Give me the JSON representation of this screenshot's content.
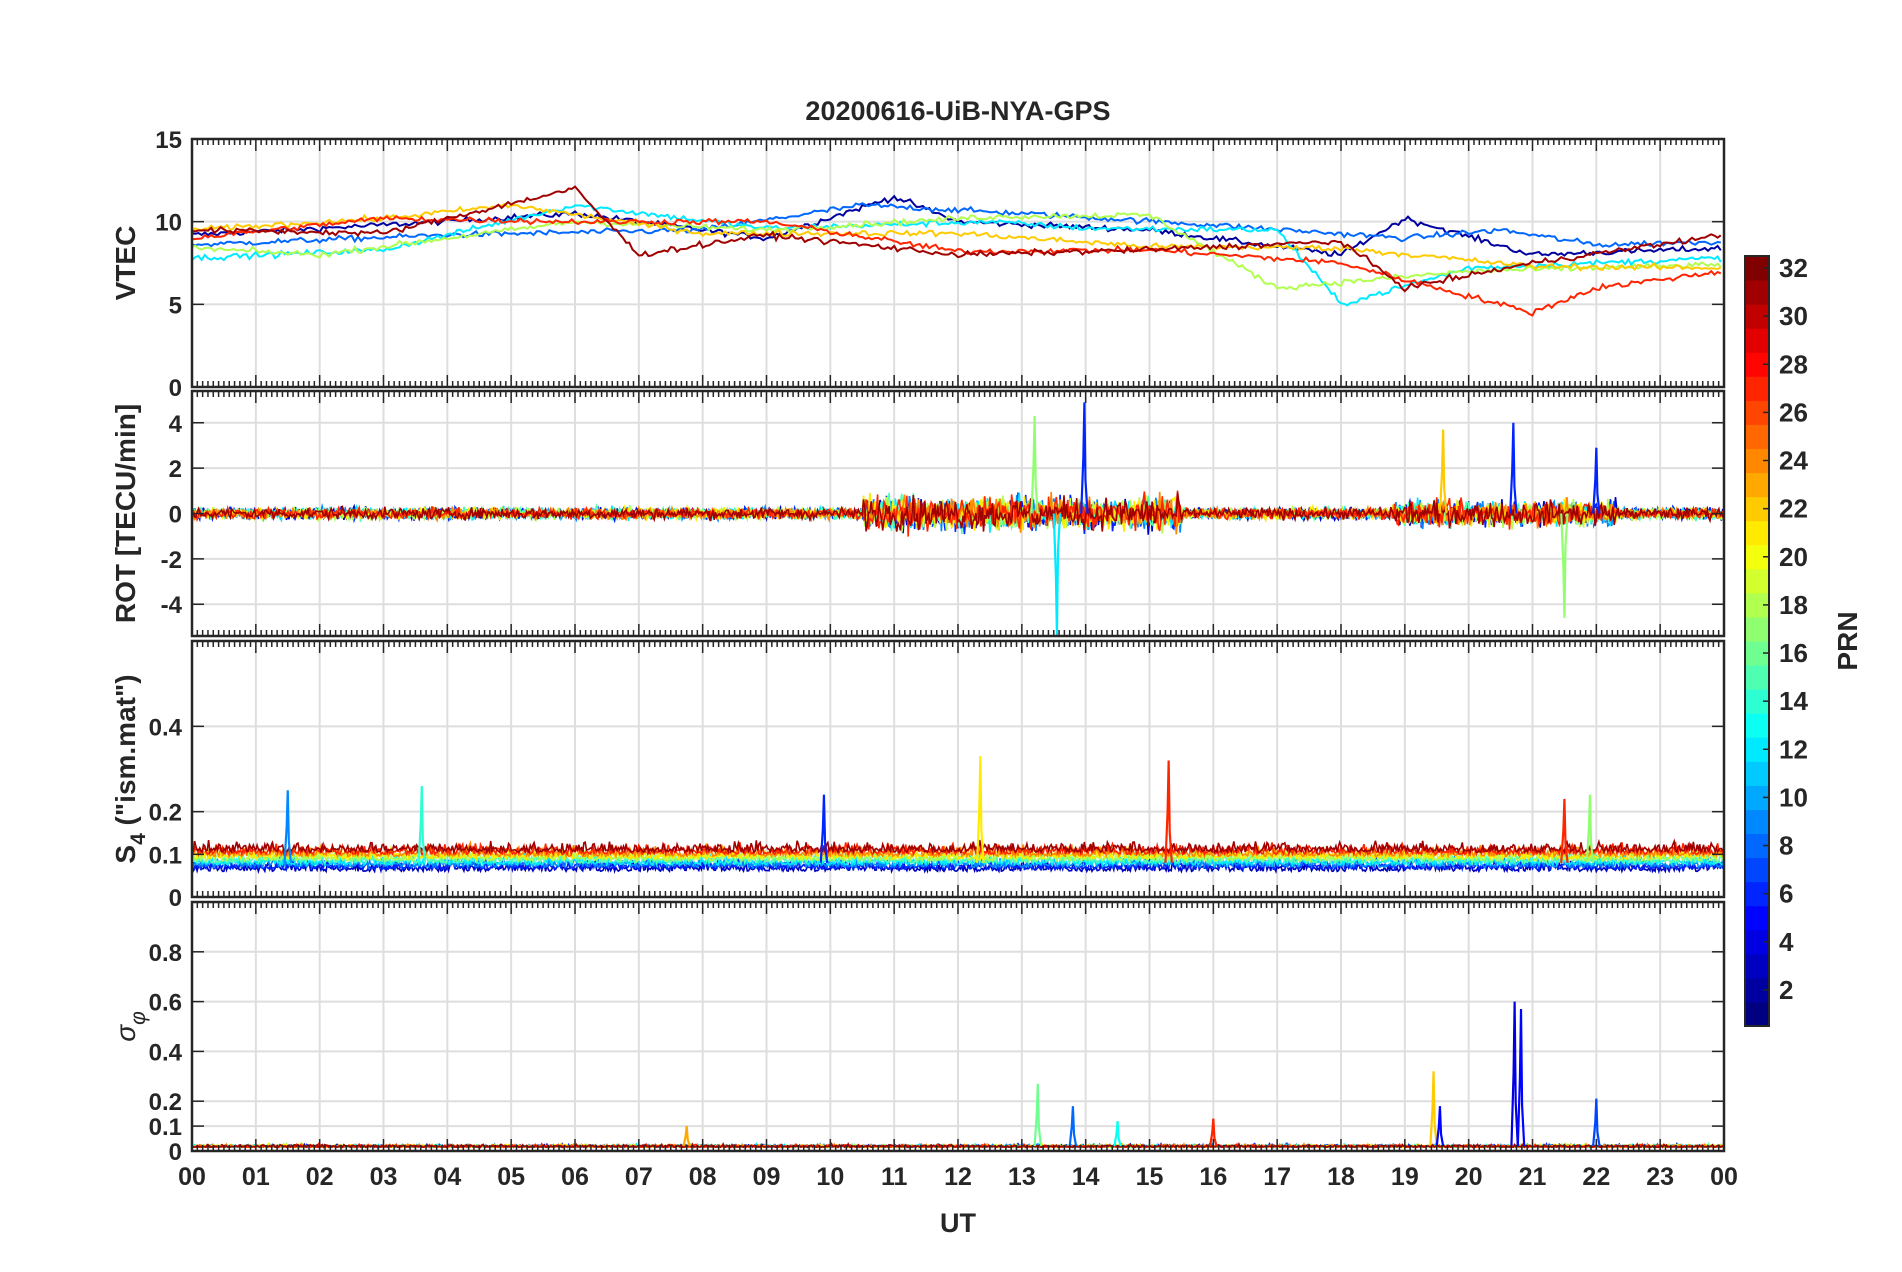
{
  "chart_data": {
    "type": "line",
    "title": "20200616-UiB-NYA-GPS",
    "xlabel": "UT",
    "x_ticks": [
      "00",
      "01",
      "02",
      "03",
      "04",
      "05",
      "06",
      "07",
      "08",
      "09",
      "10",
      "11",
      "12",
      "13",
      "14",
      "15",
      "16",
      "17",
      "18",
      "19",
      "20",
      "21",
      "22",
      "23",
      "00"
    ],
    "x_range_hours": [
      0,
      24
    ],
    "grid": true,
    "colorbar": {
      "label": "PRN",
      "range": [
        1,
        32
      ],
      "colormap": "jet",
      "ticks": [
        "2",
        "4",
        "6",
        "8",
        "10",
        "12",
        "14",
        "16",
        "18",
        "20",
        "22",
        "24",
        "26",
        "28",
        "30",
        "32"
      ],
      "placement": "right"
    },
    "panels": [
      {
        "id": "vtec",
        "ylabel": "VTEC",
        "ylim": [
          0,
          15
        ],
        "y_ticks": [
          "0",
          "5",
          "10",
          "15"
        ],
        "description_series": [
          {
            "prn": 2,
            "samples": [
              [
                0,
                9.2
              ],
              [
                3,
                9.8
              ],
              [
                6,
                10.5
              ],
              [
                9,
                9.0
              ],
              [
                11,
                11.5
              ],
              [
                12,
                10.0
              ],
              [
                15,
                9.5
              ],
              [
                18,
                8.0
              ],
              [
                19,
                10.2
              ],
              [
                21,
                8.0
              ],
              [
                24,
                8.4
              ]
            ]
          },
          {
            "prn": 8,
            "samples": [
              [
                0,
                8.6
              ],
              [
                4,
                9.2
              ],
              [
                8,
                9.5
              ],
              [
                10.5,
                11.0
              ],
              [
                13,
                10.5
              ],
              [
                16,
                9.8
              ],
              [
                19,
                9.0
              ],
              [
                20.5,
                9.5
              ],
              [
                22,
                8.6
              ],
              [
                24,
                8.8
              ]
            ]
          },
          {
            "prn": 12,
            "samples": [
              [
                0,
                7.8
              ],
              [
                3,
                8.3
              ],
              [
                6,
                11.0
              ],
              [
                9,
                9.6
              ],
              [
                12.5,
                10.0
              ],
              [
                14,
                9.6
              ],
              [
                17,
                9.5
              ],
              [
                18,
                5.0
              ],
              [
                20,
                7.2
              ],
              [
                24,
                7.8
              ]
            ]
          },
          {
            "prn": 18,
            "samples": [
              [
                0,
                8.4
              ],
              [
                2,
                8.0
              ],
              [
                6,
                10.0
              ],
              [
                9,
                9.5
              ],
              [
                12.5,
                10.3
              ],
              [
                15,
                10.4
              ],
              [
                17,
                6.0
              ],
              [
                20,
                7.0
              ],
              [
                24,
                7.4
              ]
            ]
          },
          {
            "prn": 22,
            "samples": [
              [
                0,
                9.5
              ],
              [
                3,
                10.2
              ],
              [
                5,
                11.0
              ],
              [
                8,
                9.3
              ],
              [
                12,
                9.3
              ],
              [
                15,
                8.5
              ],
              [
                18,
                8.4
              ],
              [
                21,
                7.3
              ],
              [
                24,
                7.2
              ]
            ]
          },
          {
            "prn": 27,
            "samples": [
              [
                0,
                9.0
              ],
              [
                3,
                10.2
              ],
              [
                6,
                10.0
              ],
              [
                9,
                10.0
              ],
              [
                12,
                8.2
              ],
              [
                15,
                8.3
              ],
              [
                18,
                7.5
              ],
              [
                21,
                4.5
              ],
              [
                22,
                6.0
              ],
              [
                24,
                7.0
              ]
            ]
          },
          {
            "prn": 31,
            "samples": [
              [
                0,
                9.5
              ],
              [
                3,
                9.3
              ],
              [
                6,
                12.0
              ],
              [
                7,
                8.0
              ],
              [
                9,
                9.2
              ],
              [
                12,
                8.0
              ],
              [
                15,
                8.3
              ],
              [
                18,
                8.8
              ],
              [
                19,
                6.0
              ],
              [
                21,
                7.5
              ],
              [
                24,
                9.2
              ]
            ]
          }
        ]
      },
      {
        "id": "rot",
        "ylabel": "ROT [TECU/min]",
        "ylim": [
          -5.4,
          5.4
        ],
        "y_ticks": [
          "-4",
          "-2",
          "0",
          "2",
          "4"
        ],
        "peaks": [
          {
            "hour": 13.55,
            "min": -5.4,
            "prn": 12
          },
          {
            "hour": 13.98,
            "max": 4.9,
            "prn": 6
          },
          {
            "hour": 13.2,
            "max": 4.3,
            "prn": 17
          },
          {
            "hour": 20.7,
            "max": 4.0,
            "prn": 6
          },
          {
            "hour": 19.6,
            "max": 3.7,
            "prn": 22
          },
          {
            "hour": 21.5,
            "min": -4.6,
            "prn": 17
          },
          {
            "hour": 22.0,
            "max": 2.9,
            "prn": 6
          }
        ]
      },
      {
        "id": "s4",
        "ylabel": "S4 (\"ism.mat\")",
        "ylabel_main": "S",
        "ylabel_sub": "4",
        "ylabel_rest": " (\"ism.mat\")",
        "ylim": [
          0,
          0.6
        ],
        "y_ticks": [
          "0",
          "0.1",
          "0.2",
          "0.4"
        ],
        "peaks": [
          {
            "hour": 12.35,
            "max": 0.33,
            "prn": 21
          },
          {
            "hour": 15.3,
            "max": 0.32,
            "prn": 27
          },
          {
            "hour": 3.6,
            "max": 0.26,
            "prn": 14
          },
          {
            "hour": 1.5,
            "max": 0.25,
            "prn": 9
          },
          {
            "hour": 21.9,
            "max": 0.24,
            "prn": 17
          },
          {
            "hour": 21.5,
            "max": 0.23,
            "prn": 27
          },
          {
            "hour": 9.9,
            "max": 0.24,
            "prn": 6
          }
        ]
      },
      {
        "id": "sigma_phi",
        "ylabel": "σ φ",
        "ylabel_main": "σ",
        "ylabel_sub": "φ",
        "ylim": [
          0,
          1.0
        ],
        "y_ticks": [
          "0",
          "0.1",
          "0.2",
          "0.4",
          "0.6",
          "0.8"
        ],
        "peaks": [
          {
            "hour": 20.72,
            "max": 0.6,
            "prn": 4
          },
          {
            "hour": 20.82,
            "max": 0.57,
            "prn": 5
          },
          {
            "hour": 19.45,
            "max": 0.32,
            "prn": 22
          },
          {
            "hour": 13.25,
            "max": 0.27,
            "prn": 16
          },
          {
            "hour": 22.0,
            "max": 0.21,
            "prn": 7
          },
          {
            "hour": 19.55,
            "max": 0.18,
            "prn": 5
          },
          {
            "hour": 13.8,
            "max": 0.18,
            "prn": 8
          },
          {
            "hour": 16.0,
            "max": 0.13,
            "prn": 27
          },
          {
            "hour": 14.5,
            "max": 0.12,
            "prn": 13
          },
          {
            "hour": 7.75,
            "max": 0.1,
            "prn": 23
          }
        ]
      }
    ]
  }
}
